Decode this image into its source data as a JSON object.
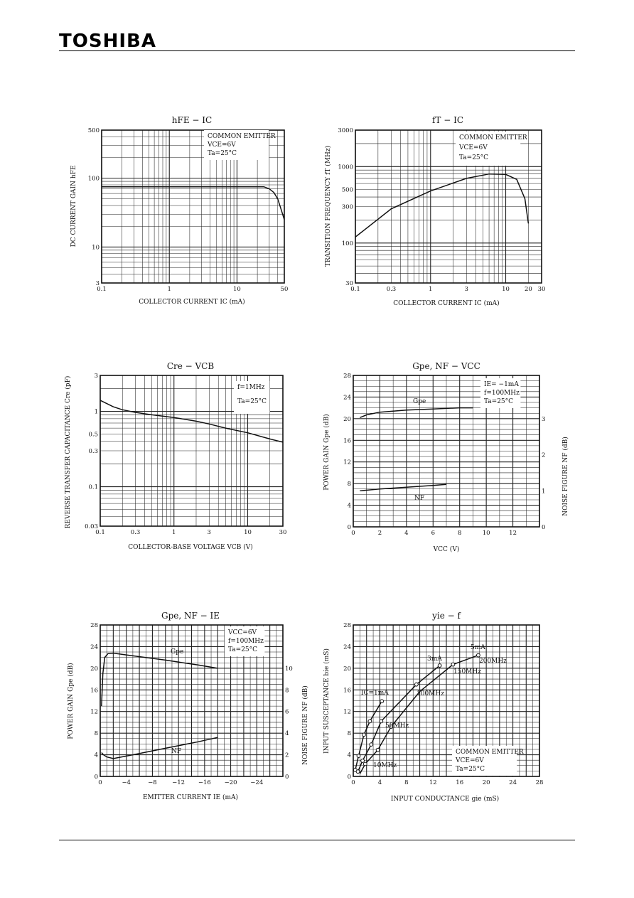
{
  "header": {
    "brand": "TOSHIBA"
  },
  "chart_data": [
    {
      "id": "hfe_ic",
      "type": "line",
      "title": "hFE − IC",
      "xlabel": "COLLECTOR CURRENT IC (mA)",
      "ylabel": "DC CURRENT GAIN hFE",
      "xscale": "log",
      "yscale": "log",
      "xlim": [
        0.1,
        50
      ],
      "ylim": [
        3,
        500
      ],
      "xticks": [
        [
          "0.1",
          0.1
        ],
        [
          "1",
          1
        ],
        [
          "10",
          10
        ],
        [
          "50",
          50
        ]
      ],
      "yticks": [
        [
          "500",
          500
        ],
        [
          "100",
          100
        ],
        [
          "10",
          10
        ],
        [
          "3",
          3
        ]
      ],
      "legend": [
        "COMMON EMITTER",
        "VCE=6V",
        "Ta=25°C"
      ],
      "legend_position": "top-right",
      "grid": true,
      "series": [
        {
          "x": [
            0.1,
            1,
            10,
            25,
            30,
            35,
            40,
            45,
            50
          ],
          "y": [
            75,
            75,
            75,
            75,
            70,
            62,
            50,
            35,
            25
          ]
        }
      ]
    },
    {
      "id": "ft_ic",
      "type": "line",
      "title": "fT − IC",
      "xlabel": "COLLECTOR CURRENT IC (mA)",
      "ylabel": "TRANSITION FREQUENCY fT (MHz)",
      "xscale": "log",
      "yscale": "log",
      "xlim": [
        0.1,
        30
      ],
      "ylim": [
        30,
        3000
      ],
      "xticks": [
        [
          "0.1",
          0.1
        ],
        [
          "0.3",
          0.3
        ],
        [
          "1",
          1
        ],
        [
          "3",
          3
        ],
        [
          "10",
          10
        ],
        [
          "20",
          20
        ],
        [
          "30",
          30
        ]
      ],
      "yticks": [
        [
          "3000",
          3000
        ],
        [
          "1000",
          1000
        ],
        [
          "500",
          500
        ],
        [
          "300",
          300
        ],
        [
          "100",
          100
        ],
        [
          "30",
          30
        ]
      ],
      "legend": [
        "COMMON EMITTER",
        "VCE=6V",
        "Ta=25°C"
      ],
      "legend_position": "top-right",
      "grid": true,
      "series": [
        {
          "x": [
            0.1,
            0.3,
            1,
            3,
            6,
            10,
            14,
            18,
            20
          ],
          "y": [
            120,
            280,
            480,
            700,
            800,
            790,
            680,
            380,
            180
          ]
        }
      ]
    },
    {
      "id": "cre_vcb",
      "type": "line",
      "title": "Cre − VCB",
      "xlabel": "COLLECTOR-BASE VOLTAGE VCB (V)",
      "ylabel": "REVERSE TRANSFER CAPACITANCE Cre (pF)",
      "xscale": "log",
      "yscale": "log",
      "xlim": [
        0.1,
        30
      ],
      "ylim": [
        0.03,
        3
      ],
      "xticks": [
        [
          "0.1",
          0.1
        ],
        [
          "0.3",
          0.3
        ],
        [
          "1",
          1
        ],
        [
          "3",
          3
        ],
        [
          "10",
          10
        ],
        [
          "30",
          30
        ]
      ],
      "yticks": [
        [
          "3",
          3
        ],
        [
          "1",
          1
        ],
        [
          "0.5",
          0.5
        ],
        [
          "0.3",
          0.3
        ],
        [
          "0.1",
          0.1
        ],
        [
          "0.03",
          0.03
        ]
      ],
      "legend": [
        "f=1MHz",
        "Ta=25°C"
      ],
      "legend_position": "top-right",
      "grid": true,
      "series": [
        {
          "x": [
            0.1,
            0.15,
            0.2,
            0.3,
            0.5,
            1,
            2,
            3,
            5,
            10,
            20,
            30
          ],
          "y": [
            1.4,
            1.15,
            1.05,
            0.97,
            0.9,
            0.83,
            0.74,
            0.68,
            0.6,
            0.52,
            0.43,
            0.39
          ]
        }
      ]
    },
    {
      "id": "gpe_nf_vcc",
      "type": "line",
      "title": "Gpe, NF − VCC",
      "xlabel": "VCC (V)",
      "ylabel": "POWER GAIN Gpe (dB)",
      "y2label": "NOISE FIGURE NF (dB)",
      "xlim": [
        0,
        14
      ],
      "ylim": [
        0,
        28
      ],
      "y2lim": [
        0,
        4.2
      ],
      "xticks": [
        [
          "0",
          0
        ],
        [
          "2",
          2
        ],
        [
          "4",
          4
        ],
        [
          "6",
          6
        ],
        [
          "8",
          8
        ],
        [
          "10",
          10
        ],
        [
          "12",
          12
        ]
      ],
      "yticks": [
        [
          "28",
          28
        ],
        [
          "24",
          24
        ],
        [
          "20",
          20
        ],
        [
          "16",
          16
        ],
        [
          "12",
          12
        ],
        [
          "8",
          8
        ],
        [
          "4",
          4
        ],
        [
          "0",
          0
        ]
      ],
      "y2ticks": [
        [
          "3",
          3
        ],
        [
          "2",
          2
        ],
        [
          "1",
          1
        ],
        [
          "0",
          0
        ]
      ],
      "legend": [
        "IE= −1mA",
        "f=100MHz",
        "Ta=25°C"
      ],
      "legend_position": "top-right",
      "grid": true,
      "series": [
        {
          "name": "Gpe",
          "axis": "left",
          "x": [
            0.5,
            1,
            2,
            4,
            6,
            8,
            9
          ],
          "y": [
            20.2,
            20.7,
            21.2,
            21.6,
            21.8,
            22,
            22
          ]
        },
        {
          "name": "NF",
          "axis": "right",
          "x": [
            0.5,
            2,
            4,
            6,
            7
          ],
          "y": [
            1.0,
            1.05,
            1.1,
            1.15,
            1.18
          ]
        }
      ]
    },
    {
      "id": "gpe_nf_ie",
      "type": "line",
      "title": "Gpe, NF − IE",
      "xlabel": "EMITTER CURRENT IE (mA)",
      "ylabel": "POWER GAIN Gpe (dB)",
      "y2label": "NOISE FIGURE NF (dB)",
      "xlim": [
        0,
        -28
      ],
      "ylim": [
        0,
        28
      ],
      "y2lim": [
        0,
        14
      ],
      "xticks": [
        [
          "0",
          0
        ],
        [
          "−4",
          -4
        ],
        [
          "−8",
          -8
        ],
        [
          "−12",
          -12
        ],
        [
          "−16",
          -16
        ],
        [
          "−20",
          -20
        ],
        [
          "−24",
          -24
        ]
      ],
      "yticks": [
        [
          "28",
          28
        ],
        [
          "24",
          24
        ],
        [
          "20",
          20
        ],
        [
          "16",
          16
        ],
        [
          "12",
          12
        ],
        [
          "8",
          8
        ],
        [
          "4",
          4
        ],
        [
          "0",
          0
        ]
      ],
      "y2ticks": [
        [
          "10",
          10
        ],
        [
          "8",
          8
        ],
        [
          "6",
          6
        ],
        [
          "4",
          4
        ],
        [
          "2",
          2
        ],
        [
          "0",
          0
        ]
      ],
      "legend": [
        "VCC=6V",
        "f=100MHz",
        "Ta=25°C"
      ],
      "legend_position": "top-right",
      "grid": true,
      "series": [
        {
          "name": "Gpe",
          "axis": "left",
          "x": [
            -0.2,
            -0.4,
            -0.7,
            -1.2,
            -2,
            -5,
            -10,
            -15,
            -18
          ],
          "y": [
            13,
            19,
            22,
            22.7,
            22.8,
            22.3,
            21.5,
            20.6,
            20
          ]
        },
        {
          "name": "NF",
          "axis": "right",
          "x": [
            -0.2,
            -0.5,
            -1,
            -2,
            -5,
            -10,
            -15,
            -18
          ],
          "y": [
            2.2,
            2.0,
            1.8,
            1.65,
            2.0,
            2.6,
            3.2,
            3.6
          ]
        }
      ]
    },
    {
      "id": "yie_f",
      "type": "line",
      "title": "yie − f",
      "xlabel": "INPUT CONDUCTANCE gie (mS)",
      "ylabel": "INPUT SUSCEPTANCE bie (mS)",
      "xlim": [
        0,
        28
      ],
      "ylim": [
        0,
        28
      ],
      "xticks": [
        [
          "0",
          0
        ],
        [
          "4",
          4
        ],
        [
          "8",
          8
        ],
        [
          "12",
          12
        ],
        [
          "16",
          16
        ],
        [
          "20",
          20
        ],
        [
          "24",
          24
        ],
        [
          "28",
          28
        ]
      ],
      "yticks": [
        [
          "28",
          28
        ],
        [
          "24",
          24
        ],
        [
          "20",
          20
        ],
        [
          "16",
          16
        ],
        [
          "12",
          12
        ],
        [
          "8",
          8
        ],
        [
          "4",
          4
        ],
        [
          "0",
          0
        ]
      ],
      "legend": [
        "COMMON EMITTER",
        "VCE=6V",
        "Ta=25°C"
      ],
      "legend_position": "bottom-right",
      "grid": true,
      "series": [
        {
          "name": "IC=1mA",
          "x": [
            0.3,
            0.8,
            1.6,
            2.5,
            4.3
          ],
          "y": [
            1.2,
            3.8,
            7.7,
            10.2,
            13.9
          ]
        },
        {
          "name": "3mA",
          "x": [
            0.7,
            1.4,
            2.7,
            4.2,
            9.5,
            13
          ],
          "y": [
            0.9,
            2.9,
            5.9,
            10.2,
            17,
            20.5
          ]
        },
        {
          "name": "5mA",
          "x": [
            1.0,
            1.8,
            3.7,
            5.7,
            10,
            15,
            18.8
          ],
          "y": [
            0.5,
            2.3,
            4.9,
            9.2,
            15.7,
            20.7,
            22.4
          ]
        }
      ],
      "annotations": [
        "5mA",
        "3mA",
        "200MHz",
        "150MHz",
        "100MHz",
        "50MHz",
        "10MHz",
        "IC=1mA"
      ],
      "markers": [
        {
          "x": 0.3,
          "y": 1.2
        },
        {
          "x": 0.8,
          "y": 3.8
        },
        {
          "x": 1.6,
          "y": 7.7
        },
        {
          "x": 2.5,
          "y": 10.2
        },
        {
          "x": 4.3,
          "y": 13.9
        },
        {
          "x": 0.7,
          "y": 0.9
        },
        {
          "x": 1.4,
          "y": 2.9
        },
        {
          "x": 2.7,
          "y": 5.9
        },
        {
          "x": 4.2,
          "y": 10.2
        },
        {
          "x": 9.5,
          "y": 17
        },
        {
          "x": 13,
          "y": 20.5
        },
        {
          "x": 1.8,
          "y": 2.3
        },
        {
          "x": 3.7,
          "y": 4.9
        },
        {
          "x": 5.7,
          "y": 9.2
        },
        {
          "x": 15,
          "y": 20.7
        },
        {
          "x": 18.8,
          "y": 22.4
        }
      ]
    }
  ]
}
